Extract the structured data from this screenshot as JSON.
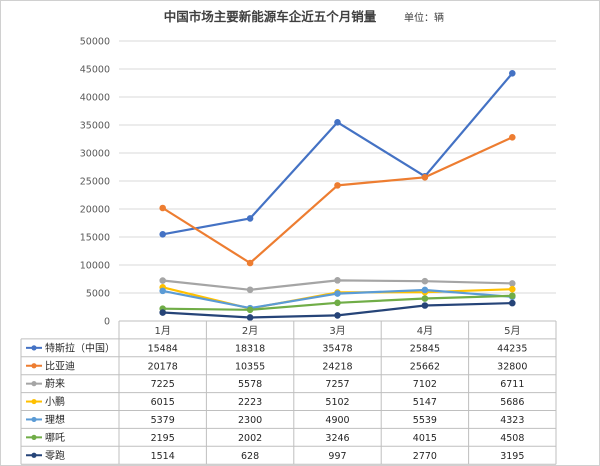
{
  "chart_data": {
    "type": "line",
    "title": "中国市场主要新能源车企近五个月销量",
    "unit_label": "单位：辆",
    "categories": [
      "1月",
      "2月",
      "3月",
      "4月",
      "5月"
    ],
    "ylim": [
      0,
      50000
    ],
    "yticks": [
      0,
      5000,
      10000,
      15000,
      20000,
      25000,
      30000,
      35000,
      40000,
      45000,
      50000
    ],
    "grid": true,
    "legend": "data-table",
    "series": [
      {
        "name": "特斯拉（中国）",
        "color": "#4472c4",
        "values": [
          15484,
          18318,
          35478,
          25845,
          44235
        ]
      },
      {
        "name": "比亚迪",
        "color": "#ed7d31",
        "values": [
          20178,
          10355,
          24218,
          25662,
          32800
        ]
      },
      {
        "name": "蔚来",
        "color": "#a5a5a5",
        "values": [
          7225,
          5578,
          7257,
          7102,
          6711
        ]
      },
      {
        "name": "小鹏",
        "color": "#ffc000",
        "values": [
          6015,
          2223,
          5102,
          5147,
          5686
        ]
      },
      {
        "name": "理想",
        "color": "#5b9bd5",
        "values": [
          5379,
          2300,
          4900,
          5539,
          4323
        ]
      },
      {
        "name": "哪吒",
        "color": "#70ad47",
        "values": [
          2195,
          2002,
          3246,
          4015,
          4508
        ]
      },
      {
        "name": "零跑",
        "color": "#264478",
        "values": [
          1514,
          628,
          997,
          2770,
          3195
        ]
      }
    ]
  }
}
